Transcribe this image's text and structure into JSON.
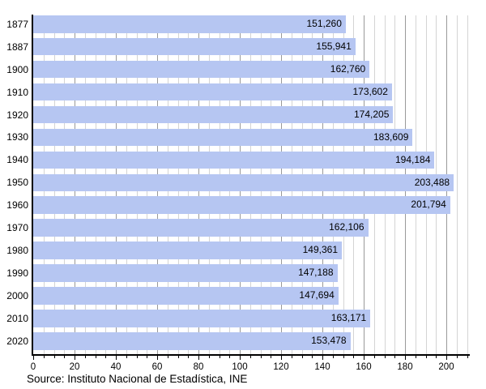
{
  "chart_data": {
    "type": "bar",
    "orientation": "horizontal",
    "title": "",
    "xlabel": "",
    "ylabel": "",
    "x_axis_unit": "thousands",
    "categories": [
      "1877",
      "1887",
      "1900",
      "1910",
      "1920",
      "1930",
      "1940",
      "1950",
      "1960",
      "1970",
      "1980",
      "1990",
      "2000",
      "2010",
      "2020"
    ],
    "values": [
      151260,
      155941,
      162760,
      173602,
      174205,
      183609,
      194184,
      203488,
      201794,
      162106,
      149361,
      147188,
      147694,
      163171,
      153478
    ],
    "value_labels": [
      "151,260",
      "155,941",
      "162,760",
      "173,602",
      "174,205",
      "183,609",
      "194,184",
      "203,488",
      "201,794",
      "162,106",
      "149,361",
      "147,188",
      "147,694",
      "163,171",
      "153,478"
    ],
    "x_ticks": [
      "0",
      "20",
      "40",
      "60",
      "80",
      "100",
      "120",
      "140",
      "160",
      "180",
      "200"
    ],
    "x_tick_values": [
      0,
      20,
      40,
      60,
      80,
      100,
      120,
      140,
      160,
      180,
      200
    ],
    "xlim": [
      0,
      211
    ],
    "minor_step": 5,
    "major_step": 20,
    "grid": "vertical, minor and major",
    "legend": "none"
  },
  "source": {
    "text": "Source: Instituto Nacional de Estadística, INE"
  },
  "colors": {
    "bar_fill": "#b6c6f2",
    "grid_major": "#999999",
    "grid_minor": "#d4d4d4",
    "axis": "#000000",
    "text": "#000000",
    "background": "#ffffff"
  }
}
